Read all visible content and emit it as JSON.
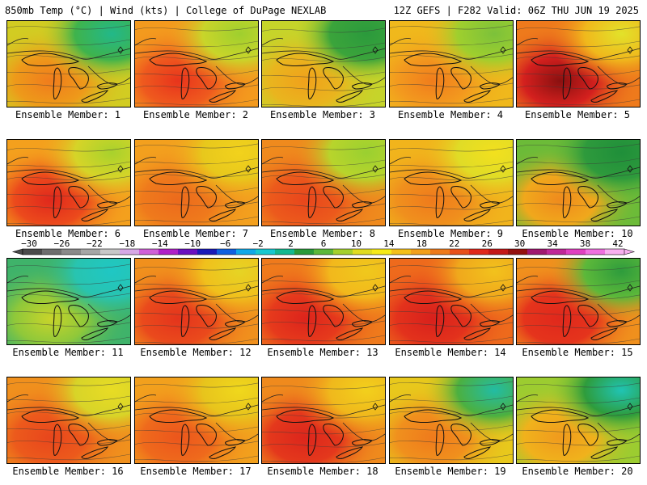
{
  "header": {
    "left": "850mb Temp (°C) | Wind (kts) | College of DuPage NEXLAB",
    "right": "12Z GEFS | F282 Valid: 06Z THU JUN 19 2025"
  },
  "caption_prefix": "Ensemble Member:",
  "members": [
    {
      "label": "Ensemble Member: 1",
      "base": "#d2cc22",
      "warm": "#ee9a1a",
      "cool": "#3fb34c",
      "warm_spot": "#f07c1c",
      "cool_spot": "#22b889"
    },
    {
      "label": "Ensemble Member: 2",
      "base": "#f39a1e",
      "warm": "#ef5a1e",
      "cool": "#c9d52a",
      "warm_spot": "#e8341c",
      "cool_spot": "#9fcf2e"
    },
    {
      "label": "Ensemble Member: 3",
      "base": "#c6d42a",
      "warm": "#e9b51e",
      "cool": "#3ba43b",
      "warm_spot": "#f0a11b",
      "cool_spot": "#2b9a3c"
    },
    {
      "label": "Ensemble Member: 4",
      "base": "#f0b81c",
      "warm": "#f39a1e",
      "cool": "#9fcf2e",
      "warm_spot": "#f07c1c",
      "cool_spot": "#7cc13a"
    },
    {
      "label": "Ensemble Member: 5",
      "base": "#ee7a1c",
      "warm": "#d4201e",
      "cool": "#f0b81c",
      "warm_spot": "#8a1010",
      "cool_spot": "#e2e22a"
    },
    {
      "label": "Ensemble Member: 6",
      "base": "#f4a01d",
      "warm": "#ec4a1c",
      "cool": "#d6d428",
      "warm_spot": "#e0281c",
      "cool_spot": "#a8d22c"
    },
    {
      "label": "Ensemble Member: 7",
      "base": "#f3a01e",
      "warm": "#ef7a1c",
      "cool": "#e8c81c",
      "warm_spot": "#ec6a1c",
      "cool_spot": "#f2d21c"
    },
    {
      "label": "Ensemble Member: 8",
      "base": "#ef8a1d",
      "warm": "#ec5a1c",
      "cool": "#b8d42c",
      "warm_spot": "#e8461c",
      "cool_spot": "#9ad030"
    },
    {
      "label": "Ensemble Member: 9",
      "base": "#f1b41c",
      "warm": "#f0901d",
      "cool": "#e0dc26",
      "warm_spot": "#ef7a1c",
      "cool_spot": "#f2e01e"
    },
    {
      "label": "Ensemble Member: 10",
      "base": "#6cbb38",
      "warm": "#f0a81c",
      "cool": "#2e9a3c",
      "warm_spot": "#ef8a1d",
      "cool_spot": "#1f8f3a"
    },
    {
      "label": "Ensemble Member: 11",
      "base": "#3fb36a",
      "warm": "#8fc83a",
      "cool": "#28c4b0",
      "warm_spot": "#c8d42a",
      "cool_spot": "#1fc7c4"
    },
    {
      "label": "Ensemble Member: 12",
      "base": "#f0901d",
      "warm": "#ea4a1c",
      "cool": "#f0c01c",
      "warm_spot": "#e4341c",
      "cool_spot": "#e6d424"
    },
    {
      "label": "Ensemble Member: 13",
      "base": "#ef7a1c",
      "warm": "#e63a1c",
      "cool": "#f2b81c",
      "warm_spot": "#dc241c",
      "cool_spot": "#f0c81c"
    },
    {
      "label": "Ensemble Member: 14",
      "base": "#ee6a1c",
      "warm": "#e3321c",
      "cool": "#f0a81c",
      "warm_spot": "#d8201c",
      "cool_spot": "#f2c21c"
    },
    {
      "label": "Ensemble Member: 15",
      "base": "#f0901d",
      "warm": "#e5341c",
      "cool": "#5cb83a",
      "warm_spot": "#e0281c",
      "cool_spot": "#2e9c3c"
    },
    {
      "label": "Ensemble Member: 16",
      "base": "#f0901d",
      "warm": "#ec5a1c",
      "cool": "#d8d428",
      "warm_spot": "#e8461c",
      "cool_spot": "#e8dc24"
    },
    {
      "label": "Ensemble Member: 17",
      "base": "#f2a01d",
      "warm": "#ef6a1c",
      "cool": "#e8c41c",
      "warm_spot": "#ec561c",
      "cool_spot": "#f0d81c"
    },
    {
      "label": "Ensemble Member: 18",
      "base": "#ef8a1d",
      "warm": "#e4381c",
      "cool": "#f0b81c",
      "warm_spot": "#dc261c",
      "cool_spot": "#f2d01c"
    },
    {
      "label": "Ensemble Member: 19",
      "base": "#e8c81c",
      "warm": "#f0901d",
      "cool": "#4cb040",
      "warm_spot": "#ef7a1c",
      "cool_spot": "#22bca4"
    },
    {
      "label": "Ensemble Member: 20",
      "base": "#9ccc30",
      "warm": "#f0b21c",
      "cool": "#2e9c3c",
      "warm_spot": "#f09a1d",
      "cool_spot": "#20c4b4"
    }
  ],
  "colorbar": {
    "labels": [
      "−30",
      "−26",
      "−22",
      "−18",
      "−14",
      "−10",
      "−6",
      "−2",
      "2",
      "6",
      "10",
      "14",
      "18",
      "22",
      "26",
      "30",
      "34",
      "38",
      "42"
    ],
    "colors": [
      "#4b4b4b",
      "#6e6e6e",
      "#8a8a8a",
      "#a6a6a6",
      "#c8c8c8",
      "#d7a8e6",
      "#d060d8",
      "#b020c8",
      "#6a10c0",
      "#1a1ab8",
      "#1060e0",
      "#10a8e8",
      "#18c8d0",
      "#14b890",
      "#2a9a3a",
      "#5cb83a",
      "#a4d02c",
      "#e0dc20",
      "#f6ea18",
      "#f4c01a",
      "#f2a01c",
      "#ee7a1c",
      "#e8501c",
      "#e0281c",
      "#c41818",
      "#941010",
      "#a01870",
      "#c02898",
      "#e040c0",
      "#f070e0",
      "#f8b0f0"
    ]
  }
}
